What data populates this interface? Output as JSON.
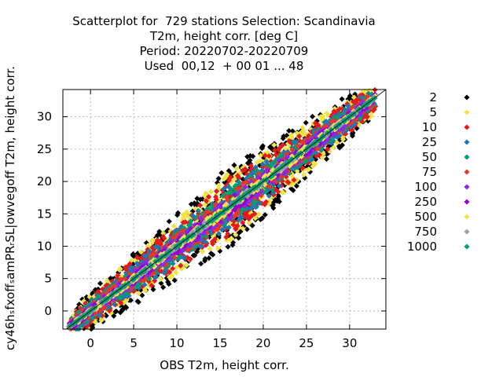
{
  "chart_data": {
    "type": "scatter",
    "title_lines": [
      "Scatterplot for  729 stations Selection: Scandinavia",
      "T2m, height corr. [deg C]",
      "Period: 20220702-20220709",
      "Used  00,12  + 00 01 ... 48"
    ],
    "xlabel": "OBS T2m, height corr.",
    "ylabel": "cy46hₛfxoffₛamPRᵣSL|owvegoff T2m, height corr.",
    "xlim": [
      -3.2,
      34.2
    ],
    "ylim": [
      -2.8,
      34.2
    ],
    "xticks": [
      0,
      5,
      10,
      15,
      20,
      25,
      30
    ],
    "yticks": [
      0,
      5,
      10,
      15,
      20,
      25,
      30
    ],
    "grid": true,
    "legend_position": "right",
    "diagonal": true,
    "legend": [
      {
        "label": "2",
        "color": "#000000"
      },
      {
        "label": "5",
        "color": "#f0e442"
      },
      {
        "label": "10",
        "color": "#e41a1c"
      },
      {
        "label": "25",
        "color": "#1f78b4"
      },
      {
        "label": "50",
        "color": "#009e73"
      },
      {
        "label": "75",
        "color": "#e5382a"
      },
      {
        "label": "100",
        "color": "#8a2be2"
      },
      {
        "label": "250",
        "color": "#9400d3"
      },
      {
        "label": "500",
        "color": "#f0e442"
      },
      {
        "label": "750",
        "color": "#a0a0a0"
      },
      {
        "label": "1000",
        "color": "#009e73"
      }
    ],
    "bands": [
      {
        "count": "2",
        "color": "#000000",
        "halfwidth": 4.6
      },
      {
        "count": "5",
        "color": "#f0e442",
        "halfwidth": 3.8
      },
      {
        "count": "10",
        "color": "#e41a1c",
        "halfwidth": 3.2
      },
      {
        "count": "25",
        "color": "#1f78b4",
        "halfwidth": 2.5
      },
      {
        "count": "50",
        "color": "#009e73",
        "halfwidth": 1.9
      },
      {
        "count": "75",
        "color": "#e5382a",
        "halfwidth": 1.6
      },
      {
        "count": "100",
        "color": "#8a2be2",
        "halfwidth": 1.3
      },
      {
        "count": "250",
        "color": "#9400d3",
        "halfwidth": 0.9
      },
      {
        "count": "500",
        "color": "#f0e442",
        "halfwidth": 0.6
      },
      {
        "count": "750",
        "color": "#a0a0a0",
        "halfwidth": 0.35
      },
      {
        "count": "1000",
        "color": "#009e73",
        "halfwidth": 0.15
      }
    ],
    "band_xrange": [
      -2.5,
      33.0
    ]
  }
}
